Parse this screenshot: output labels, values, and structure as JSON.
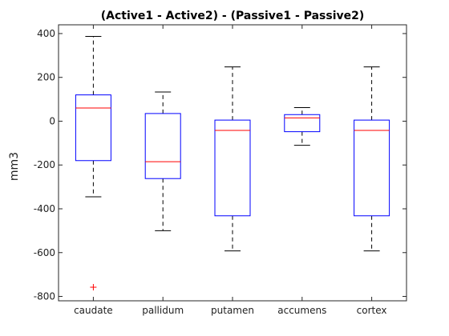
{
  "chart_data": {
    "type": "boxplot",
    "title": "(Active1 - Active2) - (Passive1 - Passive2)",
    "xlabel": "",
    "ylabel": "mm3",
    "ylim": [
      -820,
      440
    ],
    "yticks": [
      -800,
      -600,
      -400,
      -200,
      0,
      200,
      400
    ],
    "grid": false,
    "categories": [
      "caudate",
      "pallidum",
      "putamen",
      "accumens",
      "cortex"
    ],
    "boxes": [
      {
        "category": "caudate",
        "whisker_low": -345,
        "q1": -180,
        "median": 60,
        "q3": 120,
        "whisker_high": 387,
        "outliers": [
          -758
        ]
      },
      {
        "category": "pallidum",
        "whisker_low": -500,
        "q1": -262,
        "median": -185,
        "q3": 35,
        "whisker_high": 133,
        "outliers": []
      },
      {
        "category": "putamen",
        "whisker_low": -592,
        "q1": -432,
        "median": -42,
        "q3": 5,
        "whisker_high": 248,
        "outliers": []
      },
      {
        "category": "accumens",
        "whisker_low": -110,
        "q1": -48,
        "median": 15,
        "q3": 30,
        "whisker_high": 62,
        "outliers": []
      },
      {
        "category": "cortex",
        "whisker_low": -592,
        "q1": -432,
        "median": -42,
        "q3": 5,
        "whisker_high": 248,
        "outliers": []
      }
    ],
    "colors": {
      "box": "#0000ff",
      "median": "#ff0000",
      "whisker": "#000000",
      "outlier": "#ff0000"
    }
  }
}
